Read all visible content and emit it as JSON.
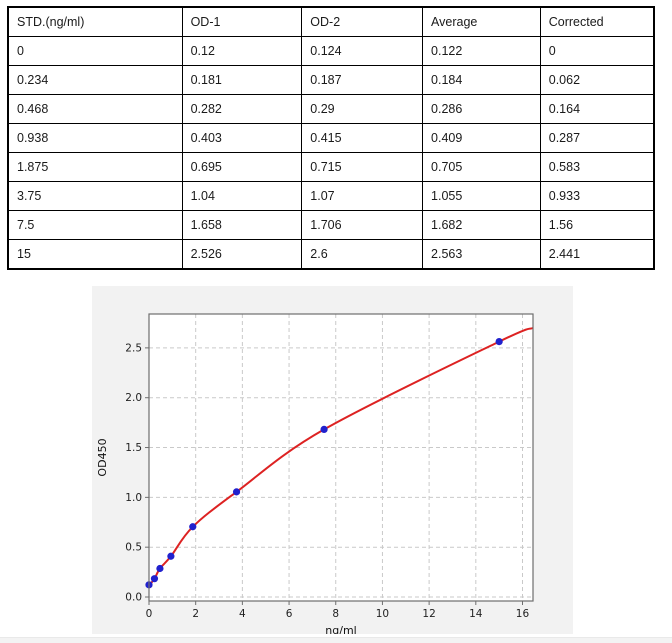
{
  "table": {
    "columns": [
      "STD.(ng/ml)",
      "OD-1",
      "OD-2",
      "Average",
      "Corrected"
    ],
    "rows": [
      [
        "0",
        "0.12",
        "0.124",
        "0.122",
        "0"
      ],
      [
        "0.234",
        "0.181",
        "0.187",
        "0.184",
        "0.062"
      ],
      [
        "0.468",
        "0.282",
        "0.29",
        "0.286",
        "0.164"
      ],
      [
        "0.938",
        "0.403",
        "0.415",
        "0.409",
        "0.287"
      ],
      [
        "1.875",
        "0.695",
        "0.715",
        "0.705",
        "0.583"
      ],
      [
        "3.75",
        "1.04",
        "1.07",
        "1.055",
        "0.933"
      ],
      [
        "7.5",
        "1.658",
        "1.706",
        "1.682",
        "1.56"
      ],
      [
        "15",
        "2.526",
        "2.6",
        "2.563",
        "2.441"
      ]
    ]
  },
  "chart_data": {
    "type": "scatter",
    "title": "",
    "xlabel": "ng/ml",
    "ylabel": "OD450",
    "xlim": [
      0,
      16.45
    ],
    "ylim": [
      -0.04,
      2.84
    ],
    "x_ticks": [
      0,
      2,
      4,
      6,
      8,
      10,
      12,
      14,
      16
    ],
    "y_ticks": [
      0.0,
      0.5,
      1.0,
      1.5,
      2.0,
      2.5
    ],
    "grid": "dashed",
    "legend": "none",
    "colors": {
      "figure_bg": "#f2f2f2",
      "plot_bg": "#ffffff",
      "grid": "#c9c9c9",
      "spine": "#6e6e6e",
      "tick_text": "#222222",
      "curve": "#dd2222",
      "marker": "#2121cd"
    },
    "series": [
      {
        "name": "standards",
        "type": "scatter",
        "x": [
          0,
          0.234,
          0.468,
          0.938,
          1.875,
          3.75,
          7.5,
          15
        ],
        "y": [
          0.122,
          0.184,
          0.286,
          0.409,
          0.705,
          1.055,
          1.682,
          2.563
        ]
      },
      {
        "name": "fit-curve",
        "type": "line",
        "x": [
          0,
          0.234,
          0.468,
          0.938,
          1.875,
          3.75,
          7.5,
          15,
          16.45
        ],
        "y": [
          0.115,
          0.184,
          0.286,
          0.409,
          0.705,
          1.055,
          1.682,
          2.563,
          2.7
        ]
      }
    ]
  }
}
